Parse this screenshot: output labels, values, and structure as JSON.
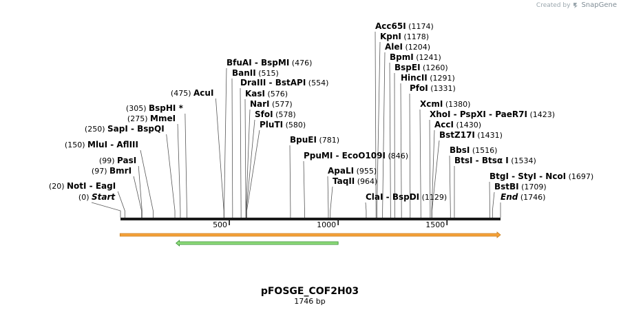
{
  "credit": {
    "prefix": "Created by",
    "brand": "SnapGene"
  },
  "map": {
    "name": "pFOSGE_COF2H03",
    "length_label": "1746 bp",
    "length_bp": 1746,
    "ruler_ticks": [
      {
        "value": 500,
        "label": "500"
      },
      {
        "value": 1000,
        "label": "1000"
      },
      {
        "value": 1500,
        "label": "1500"
      }
    ],
    "colors": {
      "backbone": "#1a1a1a",
      "orange_feature": "#f5a23a",
      "orange_edge": "#c67b1a",
      "green_feature": "#8fdb7a",
      "green_edge": "#2e8b2e"
    },
    "features": [
      {
        "name": "orange-feature",
        "start": 1,
        "end": 1746,
        "direction": "forward",
        "color": "#f5a23a"
      },
      {
        "name": "green-feature",
        "start": 255,
        "end": 1000,
        "direction": "reverse",
        "color": "#8fdb7a"
      }
    ],
    "sites": [
      {
        "names": [
          "Start"
        ],
        "pos": 0,
        "pos_label": "(0)",
        "side": "right",
        "italic": true
      },
      {
        "names": [
          "NotI",
          "EagI"
        ],
        "pos": 20,
        "pos_label": "(20)",
        "side": "left"
      },
      {
        "names": [
          "BmrI"
        ],
        "pos": 97,
        "pos_label": "(97)",
        "side": "left"
      },
      {
        "names": [
          "PasI"
        ],
        "pos": 99,
        "pos_label": "(99)",
        "side": "left"
      },
      {
        "names": [
          "MluI",
          "AflIII"
        ],
        "pos": 150,
        "pos_label": "(150)",
        "side": "left"
      },
      {
        "names": [
          "SapI",
          "BspQI"
        ],
        "pos": 250,
        "pos_label": "(250)",
        "side": "left"
      },
      {
        "names": [
          "MmeI"
        ],
        "pos": 275,
        "pos_label": "(275)",
        "side": "left"
      },
      {
        "names": [
          "BspHI *"
        ],
        "pos": 305,
        "pos_label": "(305)",
        "side": "left"
      },
      {
        "names": [
          "AcuI"
        ],
        "pos": 475,
        "pos_label": "(475)",
        "side": "left"
      },
      {
        "names": [
          "BfuAI",
          "BspMI"
        ],
        "pos": 476,
        "pos_label": "(476)",
        "side": "right"
      },
      {
        "names": [
          "BanII"
        ],
        "pos": 515,
        "pos_label": "(515)",
        "side": "right"
      },
      {
        "names": [
          "DraIII",
          "BstAPI"
        ],
        "pos": 554,
        "pos_label": "(554)",
        "side": "right"
      },
      {
        "names": [
          "KasI"
        ],
        "pos": 576,
        "pos_label": "(576)",
        "side": "right"
      },
      {
        "names": [
          "NarI"
        ],
        "pos": 577,
        "pos_label": "(577)",
        "side": "right"
      },
      {
        "names": [
          "SfoI"
        ],
        "pos": 578,
        "pos_label": "(578)",
        "side": "right"
      },
      {
        "names": [
          "PluTI"
        ],
        "pos": 580,
        "pos_label": "(580)",
        "side": "right"
      },
      {
        "names": [
          "BpuEI"
        ],
        "pos": 781,
        "pos_label": "(781)",
        "side": "right"
      },
      {
        "names": [
          "PpuMI",
          "EcoO109I"
        ],
        "pos": 846,
        "pos_label": "(846)",
        "side": "right"
      },
      {
        "names": [
          "ApaLI"
        ],
        "pos": 955,
        "pos_label": "(955)",
        "side": "right"
      },
      {
        "names": [
          "TaqII"
        ],
        "pos": 964,
        "pos_label": "(964)",
        "side": "right"
      },
      {
        "names": [
          "ClaI",
          "BspDI"
        ],
        "pos": 1129,
        "pos_label": "(1129)",
        "side": "right"
      },
      {
        "names": [
          "Acc65I"
        ],
        "pos": 1174,
        "pos_label": "(1174)",
        "side": "right"
      },
      {
        "names": [
          "KpnI"
        ],
        "pos": 1178,
        "pos_label": "(1178)",
        "side": "right"
      },
      {
        "names": [
          "AleI"
        ],
        "pos": 1204,
        "pos_label": "(1204)",
        "side": "right"
      },
      {
        "names": [
          "BpmI"
        ],
        "pos": 1241,
        "pos_label": "(1241)",
        "side": "right"
      },
      {
        "names": [
          "BspEI"
        ],
        "pos": 1260,
        "pos_label": "(1260)",
        "side": "right"
      },
      {
        "names": [
          "HincII"
        ],
        "pos": 1291,
        "pos_label": "(1291)",
        "side": "right"
      },
      {
        "names": [
          "PfoI"
        ],
        "pos": 1331,
        "pos_label": "(1331)",
        "side": "right"
      },
      {
        "names": [
          "XcmI"
        ],
        "pos": 1380,
        "pos_label": "(1380)",
        "side": "right"
      },
      {
        "names": [
          "XhoI",
          "PspXI",
          "PaeR7I"
        ],
        "pos": 1423,
        "pos_label": "(1423)",
        "side": "right"
      },
      {
        "names": [
          "AccI"
        ],
        "pos": 1430,
        "pos_label": "(1430)",
        "side": "right"
      },
      {
        "names": [
          "BstZ17I"
        ],
        "pos": 1431,
        "pos_label": "(1431)",
        "side": "right"
      },
      {
        "names": [
          "BbsI"
        ],
        "pos": 1516,
        "pos_label": "(1516)",
        "side": "right"
      },
      {
        "names": [
          "BtsI",
          "Btsα I"
        ],
        "pos": 1534,
        "pos_label": "(1534)",
        "side": "right"
      },
      {
        "names": [
          "BtgI",
          "StyI",
          "NcoI"
        ],
        "pos": 1697,
        "pos_label": "(1697)",
        "side": "right"
      },
      {
        "names": [
          "BstBI"
        ],
        "pos": 1709,
        "pos_label": "(1709)",
        "side": "right"
      },
      {
        "names": [
          "End"
        ],
        "pos": 1746,
        "pos_label": "(1746)",
        "side": "right",
        "italic": true
      }
    ]
  }
}
